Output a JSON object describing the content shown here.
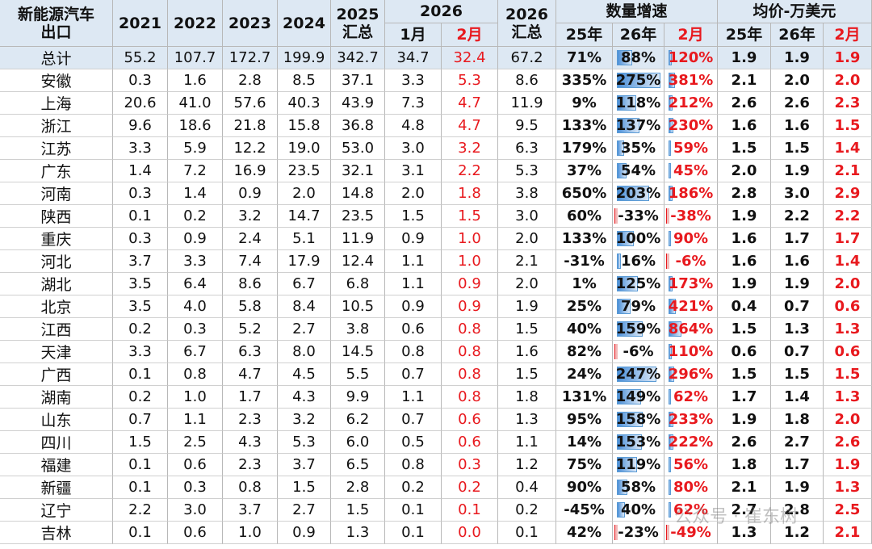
{
  "header": {
    "col0": [
      "新能源汽车",
      "出口"
    ],
    "years": [
      "2021",
      "2022",
      "2023",
      "2024"
    ],
    "total2025": [
      "2025",
      "汇总"
    ],
    "group2026": "2026",
    "months": [
      "1月",
      "2月"
    ],
    "total2026": [
      "2026",
      "汇总"
    ],
    "growth": "数量增速",
    "growth_cols": [
      "25年",
      "26年",
      "2月"
    ],
    "price": "均价-万美元",
    "price_cols": [
      "25年",
      "26年",
      "2月"
    ]
  },
  "table": {
    "rows": [
      [
        "总计",
        "55.2",
        "107.7",
        "172.7",
        "199.9",
        "342.7",
        "34.7",
        "32.4",
        "67.2",
        "71%",
        "88%",
        "120%",
        "1.9",
        "1.9",
        "1.9"
      ],
      [
        "安徽",
        "0.3",
        "1.6",
        "2.8",
        "8.5",
        "37.1",
        "3.3",
        "5.3",
        "8.6",
        "335%",
        "275%",
        "381%",
        "2.1",
        "2.0",
        "2.0"
      ],
      [
        "上海",
        "20.6",
        "41.0",
        "57.6",
        "40.3",
        "43.9",
        "7.3",
        "4.7",
        "11.9",
        "9%",
        "118%",
        "212%",
        "2.6",
        "2.6",
        "2.3"
      ],
      [
        "浙江",
        "9.6",
        "18.6",
        "21.8",
        "15.8",
        "36.8",
        "4.8",
        "4.7",
        "9.5",
        "133%",
        "137%",
        "230%",
        "1.6",
        "1.6",
        "1.5"
      ],
      [
        "江苏",
        "3.3",
        "5.9",
        "12.2",
        "19.0",
        "53.0",
        "3.0",
        "3.2",
        "6.3",
        "179%",
        "35%",
        "59%",
        "1.5",
        "1.5",
        "1.4"
      ],
      [
        "广东",
        "1.4",
        "7.2",
        "16.9",
        "23.5",
        "32.1",
        "3.1",
        "2.2",
        "5.3",
        "37%",
        "54%",
        "45%",
        "2.0",
        "1.9",
        "2.1"
      ],
      [
        "河南",
        "0.3",
        "1.4",
        "0.9",
        "2.0",
        "14.8",
        "2.0",
        "1.8",
        "3.8",
        "650%",
        "203%",
        "186%",
        "2.8",
        "3.0",
        "2.9"
      ],
      [
        "陕西",
        "0.1",
        "0.2",
        "3.2",
        "14.7",
        "23.5",
        "1.5",
        "1.5",
        "3.0",
        "60%",
        "-33%",
        "-38%",
        "1.9",
        "2.2",
        "2.2"
      ],
      [
        "重庆",
        "0.3",
        "0.9",
        "2.4",
        "5.1",
        "11.9",
        "0.9",
        "1.0",
        "2.0",
        "133%",
        "100%",
        "90%",
        "1.6",
        "1.7",
        "1.7"
      ],
      [
        "河北",
        "3.7",
        "3.3",
        "7.4",
        "17.9",
        "12.4",
        "1.1",
        "1.0",
        "2.1",
        "-31%",
        "16%",
        "-6%",
        "1.6",
        "1.6",
        "1.4"
      ],
      [
        "湖北",
        "3.5",
        "6.4",
        "8.6",
        "6.7",
        "6.8",
        "1.1",
        "0.9",
        "2.0",
        "1%",
        "125%",
        "173%",
        "1.9",
        "1.9",
        "2.0"
      ],
      [
        "北京",
        "3.5",
        "4.0",
        "5.8",
        "8.4",
        "10.5",
        "0.9",
        "0.9",
        "1.9",
        "25%",
        "79%",
        "421%",
        "0.4",
        "0.7",
        "0.6"
      ],
      [
        "江西",
        "0.2",
        "0.3",
        "5.2",
        "2.7",
        "3.8",
        "0.6",
        "0.8",
        "1.5",
        "40%",
        "159%",
        "864%",
        "1.5",
        "1.3",
        "1.3"
      ],
      [
        "天津",
        "3.3",
        "6.7",
        "6.3",
        "8.0",
        "14.5",
        "0.8",
        "0.8",
        "1.6",
        "82%",
        "-6%",
        "110%",
        "0.6",
        "0.7",
        "0.6"
      ],
      [
        "广西",
        "0.1",
        "0.8",
        "4.7",
        "4.5",
        "5.5",
        "0.7",
        "0.8",
        "1.5",
        "24%",
        "247%",
        "296%",
        "1.5",
        "1.5",
        "1.5"
      ],
      [
        "湖南",
        "0.2",
        "1.0",
        "1.7",
        "4.3",
        "9.9",
        "1.1",
        "0.8",
        "1.8",
        "131%",
        "149%",
        "62%",
        "1.7",
        "1.4",
        "1.3"
      ],
      [
        "山东",
        "0.7",
        "1.1",
        "2.3",
        "3.2",
        "6.2",
        "0.7",
        "0.6",
        "1.3",
        "95%",
        "158%",
        "233%",
        "1.9",
        "1.8",
        "2.0"
      ],
      [
        "四川",
        "1.5",
        "2.5",
        "4.3",
        "5.3",
        "6.0",
        "0.5",
        "0.6",
        "1.1",
        "14%",
        "153%",
        "222%",
        "2.6",
        "2.7",
        "2.6"
      ],
      [
        "福建",
        "0.1",
        "0.6",
        "2.3",
        "3.7",
        "6.5",
        "0.8",
        "0.3",
        "1.2",
        "75%",
        "119%",
        "56%",
        "1.8",
        "1.7",
        "1.9"
      ],
      [
        "新疆",
        "0.1",
        "0.3",
        "0.8",
        "1.5",
        "2.8",
        "0.2",
        "0.2",
        "0.4",
        "90%",
        "58%",
        "80%",
        "2.1",
        "1.9",
        "1.3"
      ],
      [
        "辽宁",
        "2.2",
        "3.0",
        "3.7",
        "2.7",
        "1.5",
        "0.1",
        "0.1",
        "0.2",
        "-45%",
        "40%",
        "62%",
        "2.7",
        "2.8",
        "2.5"
      ],
      [
        "吉林",
        "0.1",
        "0.6",
        "1.0",
        "0.9",
        "1.3",
        "0.1",
        "0.0",
        "0.1",
        "42%",
        "-23%",
        "-49%",
        "1.3",
        "1.2",
        "2.1"
      ]
    ]
  },
  "watermark": "公众号 · 崔东树"
}
